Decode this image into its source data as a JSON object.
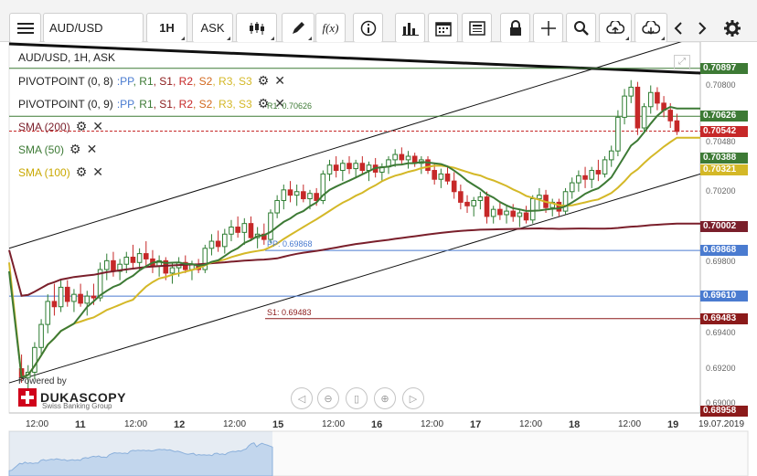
{
  "toolbar": {
    "instrument": "AUD/USD",
    "timeframe": "1H",
    "side": "ASK",
    "fx_label": "f(x)"
  },
  "legend": {
    "title": "AUD/USD, 1H, ASK",
    "pivot1": "PIVOTPOINT (0, 8)",
    "pivot2": "PIVOTPOINT (0, 9)",
    "pp_items": [
      ":PP",
      ", R1",
      ", S1",
      ", R2",
      ", S2",
      ", R3",
      ", S3"
    ],
    "sma200": "SMA (200)",
    "sma50": "SMA (50)",
    "sma100": "SMA (100)"
  },
  "colors": {
    "candle_up": "#2e7d32",
    "candle_down": "#c62828",
    "sma200": "#7a1f2b",
    "sma50": "#3d7a35",
    "sma100": "#d4b827",
    "pp": "#4a7bd0",
    "r1": "#3d7a35",
    "s1": "#8b1a1a",
    "r2": "#c62828",
    "s2": "#d2691e",
    "r3": "#d4b827",
    "s3": "#d4b827"
  },
  "annotations": {
    "r1_label": "R1: 0.70626",
    "pp_label": "PP: 0.69868",
    "s1_label": "S1: 0.69483"
  },
  "branding": {
    "powered": "Powered by",
    "name": "DUKASCOPY",
    "sub": "Swiss Banking Group"
  },
  "chart_data": {
    "type": "candlestick",
    "ylim": [
      0.6895,
      0.7104
    ],
    "y_ticks": [
      "0.70800",
      "0.70480",
      "0.70200",
      "0.69800",
      "0.69400",
      "0.69200",
      "0.69000"
    ],
    "price_labels": [
      {
        "text": "0.70897",
        "value": 0.70897,
        "color": "#3d7a35"
      },
      {
        "text": "0.70626",
        "value": 0.70626,
        "color": "#3d7a35"
      },
      {
        "text": "0.70542",
        "value": 0.70542,
        "color": "#c62828"
      },
      {
        "text": "0.70388",
        "value": 0.70388,
        "color": "#3d7a35"
      },
      {
        "text": "0.70321",
        "value": 0.70321,
        "color": "#d4b827"
      },
      {
        "text": "0.70002",
        "value": 0.70002,
        "color": "#7a1f2b"
      },
      {
        "text": "0.69868",
        "value": 0.69868,
        "color": "#4a7bd0"
      },
      {
        "text": "0.69610",
        "value": 0.6961,
        "color": "#4a7bd0"
      },
      {
        "text": "0.69483",
        "value": 0.69483,
        "color": "#8b1a1a"
      },
      {
        "text": "0.68958",
        "value": 0.68958,
        "color": "#8b1a1a"
      }
    ],
    "time_labels": [
      {
        "text": "12:00",
        "day": false
      },
      {
        "text": "11",
        "day": true
      },
      {
        "text": "12:00",
        "day": false
      },
      {
        "text": "12",
        "day": true
      },
      {
        "text": "12:00",
        "day": false
      },
      {
        "text": "15",
        "day": true
      },
      {
        "text": "12:00",
        "day": false
      },
      {
        "text": "16",
        "day": true
      },
      {
        "text": "12:00",
        "day": false
      },
      {
        "text": "17",
        "day": true
      },
      {
        "text": "12:00",
        "day": false
      },
      {
        "text": "18",
        "day": true
      },
      {
        "text": "12:00",
        "day": false
      },
      {
        "text": "19",
        "day": true
      },
      {
        "text": "19.07.2019",
        "day": false
      }
    ],
    "horizontal_levels": {
      "r1": 0.70626,
      "pp": 0.69868,
      "s1": 0.69483,
      "blue": 0.6961,
      "top_green": 0.70897,
      "last": 0.70542
    },
    "candles": [
      [
        0.692,
        0.6928,
        0.6912,
        0.6915
      ],
      [
        0.6915,
        0.6922,
        0.6908,
        0.6918
      ],
      [
        0.6918,
        0.6935,
        0.6914,
        0.6932
      ],
      [
        0.6932,
        0.6948,
        0.6928,
        0.6945
      ],
      [
        0.6945,
        0.6962,
        0.694,
        0.6958
      ],
      [
        0.6958,
        0.6968,
        0.695,
        0.6955
      ],
      [
        0.6955,
        0.697,
        0.6952,
        0.6966
      ],
      [
        0.6966,
        0.697,
        0.6955,
        0.6958
      ],
      [
        0.6958,
        0.6965,
        0.6952,
        0.6962
      ],
      [
        0.6962,
        0.6968,
        0.6955,
        0.6957
      ],
      [
        0.6957,
        0.6964,
        0.695,
        0.6961
      ],
      [
        0.6961,
        0.6968,
        0.6956,
        0.696
      ],
      [
        0.696,
        0.698,
        0.6958,
        0.6976
      ],
      [
        0.6976,
        0.6985,
        0.697,
        0.6981
      ],
      [
        0.6981,
        0.6986,
        0.6972,
        0.6975
      ],
      [
        0.6975,
        0.6982,
        0.697,
        0.6979
      ],
      [
        0.6979,
        0.6986,
        0.6974,
        0.6983
      ],
      [
        0.6983,
        0.699,
        0.6976,
        0.698
      ],
      [
        0.698,
        0.6988,
        0.6975,
        0.6985
      ],
      [
        0.6985,
        0.6992,
        0.6978,
        0.6982
      ],
      [
        0.6982,
        0.6987,
        0.6974,
        0.6978
      ],
      [
        0.6978,
        0.6984,
        0.6972,
        0.6981
      ],
      [
        0.6981,
        0.6983,
        0.697,
        0.6974
      ],
      [
        0.6974,
        0.698,
        0.6968,
        0.6977
      ],
      [
        0.6977,
        0.6983,
        0.6972,
        0.698
      ],
      [
        0.698,
        0.6984,
        0.6974,
        0.6976
      ],
      [
        0.6976,
        0.6981,
        0.697,
        0.6979
      ],
      [
        0.6979,
        0.6982,
        0.6974,
        0.6976
      ],
      [
        0.6976,
        0.699,
        0.6974,
        0.6988
      ],
      [
        0.6988,
        0.6996,
        0.6984,
        0.6992
      ],
      [
        0.6992,
        0.6998,
        0.6986,
        0.6989
      ],
      [
        0.6989,
        0.6999,
        0.6985,
        0.6996
      ],
      [
        0.6996,
        0.7004,
        0.6992,
        0.7
      ],
      [
        0.7,
        0.7006,
        0.6994,
        0.6997
      ],
      [
        0.6997,
        0.7005,
        0.699,
        0.7002
      ],
      [
        0.7002,
        0.7006,
        0.6992,
        0.6994
      ],
      [
        0.6994,
        0.7,
        0.6988,
        0.6996
      ],
      [
        0.6996,
        0.7002,
        0.699,
        0.6993
      ],
      [
        0.6993,
        0.701,
        0.6991,
        0.7008
      ],
      [
        0.7008,
        0.7018,
        0.7005,
        0.7015
      ],
      [
        0.7015,
        0.7024,
        0.701,
        0.7021
      ],
      [
        0.7021,
        0.7026,
        0.7014,
        0.7018
      ],
      [
        0.7018,
        0.7024,
        0.7012,
        0.702
      ],
      [
        0.702,
        0.7024,
        0.7014,
        0.7016
      ],
      [
        0.7016,
        0.7021,
        0.701,
        0.7019
      ],
      [
        0.7019,
        0.7022,
        0.7012,
        0.7015
      ],
      [
        0.7015,
        0.7032,
        0.7013,
        0.703
      ],
      [
        0.703,
        0.7038,
        0.7026,
        0.7035
      ],
      [
        0.7035,
        0.704,
        0.7028,
        0.7032
      ],
      [
        0.7032,
        0.7038,
        0.7026,
        0.7036
      ],
      [
        0.7036,
        0.704,
        0.703,
        0.7033
      ],
      [
        0.7033,
        0.7038,
        0.7028,
        0.7036
      ],
      [
        0.7036,
        0.704,
        0.703,
        0.7032
      ],
      [
        0.7032,
        0.7037,
        0.7026,
        0.7035
      ],
      [
        0.7035,
        0.7039,
        0.7028,
        0.7031
      ],
      [
        0.7031,
        0.7036,
        0.7026,
        0.7034
      ],
      [
        0.7034,
        0.704,
        0.703,
        0.7038
      ],
      [
        0.7038,
        0.7044,
        0.7034,
        0.7041
      ],
      [
        0.7041,
        0.7045,
        0.7035,
        0.7038
      ],
      [
        0.7038,
        0.7043,
        0.7033,
        0.704
      ],
      [
        0.704,
        0.7042,
        0.7034,
        0.7036
      ],
      [
        0.7036,
        0.704,
        0.703,
        0.7038
      ],
      [
        0.7038,
        0.704,
        0.703,
        0.7032
      ],
      [
        0.7032,
        0.7036,
        0.7024,
        0.7027
      ],
      [
        0.7027,
        0.7033,
        0.7022,
        0.703
      ],
      [
        0.703,
        0.7034,
        0.7024,
        0.7026
      ],
      [
        0.7026,
        0.7031,
        0.7016,
        0.702
      ],
      [
        0.702,
        0.7024,
        0.701,
        0.7014
      ],
      [
        0.7014,
        0.7018,
        0.7008,
        0.7012
      ],
      [
        0.7012,
        0.7017,
        0.7006,
        0.7015
      ],
      [
        0.7015,
        0.702,
        0.701,
        0.7017
      ],
      [
        0.7017,
        0.702,
        0.7002,
        0.7006
      ],
      [
        0.7006,
        0.7012,
        0.7002,
        0.701
      ],
      [
        0.701,
        0.7014,
        0.7004,
        0.7007
      ],
      [
        0.7007,
        0.7012,
        0.7002,
        0.7009
      ],
      [
        0.7009,
        0.7013,
        0.7003,
        0.7006
      ],
      [
        0.7006,
        0.701,
        0.7,
        0.7008
      ],
      [
        0.7008,
        0.7012,
        0.7002,
        0.7004
      ],
      [
        0.7004,
        0.7018,
        0.7002,
        0.7016
      ],
      [
        0.7016,
        0.7022,
        0.701,
        0.7018
      ],
      [
        0.7018,
        0.7021,
        0.7008,
        0.7011
      ],
      [
        0.7011,
        0.7016,
        0.7006,
        0.7014
      ],
      [
        0.7014,
        0.7016,
        0.7006,
        0.7009
      ],
      [
        0.7009,
        0.7022,
        0.7007,
        0.702
      ],
      [
        0.702,
        0.7028,
        0.7016,
        0.7025
      ],
      [
        0.7025,
        0.7032,
        0.702,
        0.7029
      ],
      [
        0.7029,
        0.7034,
        0.7022,
        0.7027
      ],
      [
        0.7027,
        0.7034,
        0.7022,
        0.7032
      ],
      [
        0.7032,
        0.7038,
        0.7026,
        0.703
      ],
      [
        0.703,
        0.704,
        0.7028,
        0.7038
      ],
      [
        0.7038,
        0.7046,
        0.7034,
        0.7043
      ],
      [
        0.7043,
        0.7066,
        0.704,
        0.7062
      ],
      [
        0.7062,
        0.7078,
        0.7058,
        0.7074
      ],
      [
        0.7074,
        0.7083,
        0.707,
        0.7079
      ],
      [
        0.7079,
        0.7082,
        0.7052,
        0.7056
      ],
      [
        0.7056,
        0.707,
        0.7054,
        0.7068
      ],
      [
        0.7068,
        0.708,
        0.7064,
        0.7076
      ],
      [
        0.7076,
        0.7079,
        0.7066,
        0.707
      ],
      [
        0.707,
        0.7074,
        0.7062,
        0.7066
      ],
      [
        0.7066,
        0.707,
        0.7056,
        0.706
      ],
      [
        0.706,
        0.7064,
        0.7052,
        0.7054
      ]
    ]
  }
}
